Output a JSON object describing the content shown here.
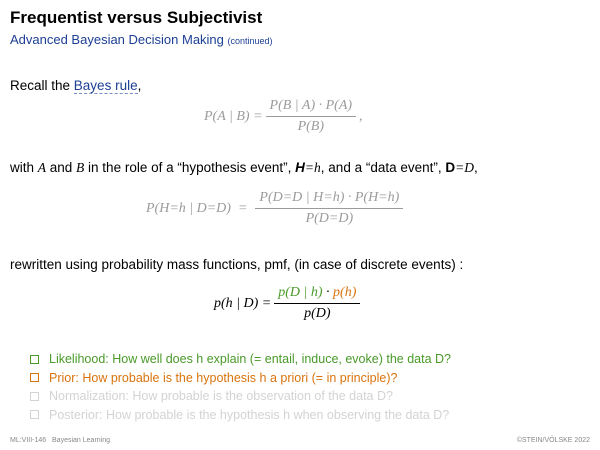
{
  "header": {
    "title": "Frequentist versus Subjectivist",
    "subtitle": "Advanced Bayesian Decision Making",
    "subtitle_note": "(continued)"
  },
  "body": {
    "recall_prefix": "Recall the ",
    "recall_link": "Bayes rule",
    "recall_suffix": ",",
    "eq1": {
      "lhs": "P(A | B) =",
      "num": "P(B | A) · P(A)",
      "den": "P(B)",
      "tail": ","
    },
    "with_text": {
      "p1": "with ",
      "A": "A",
      "p2": " and ",
      "B": "B",
      "p3": " in the role of a “hypothesis event”, ",
      "H": "H",
      "h": "=h",
      "p4": ", and a “data event”, ",
      "D": "D",
      "d": "=D",
      "p5": ","
    },
    "eq2": {
      "lhs": "P(H=h | D=D)  =",
      "num": "P(D=D | H=h) · P(H=h)",
      "den": "P(D=D)"
    },
    "rewritten": "rewritten using probability mass functions, pmf, (in case of discrete events) :",
    "eq3": {
      "lhs": "p(h | D) =",
      "num_likelihood": "p(D | h)",
      "num_dot": " · ",
      "num_prior": "p(h)",
      "den": "p(D)"
    },
    "bullets": [
      {
        "label": "Likelihood: How well does h explain (= entail, induce, evoke) the data D?",
        "color": "#4a9a2a"
      },
      {
        "label": "Prior: How probable is the hypothesis h a priori (= in principle)?",
        "color": "#d9730d"
      },
      {
        "label": "Normalization: How probable is the observation of the data D?",
        "color": "#d3d3d3"
      },
      {
        "label": "Posterior: How probable is the hypothesis h when observing the data D?",
        "color": "#d3d3d3"
      }
    ]
  },
  "footer": {
    "left": "ML:VIII-146   Bayesian Learning",
    "right": "©STEIN/VÖLSKE 2022"
  }
}
